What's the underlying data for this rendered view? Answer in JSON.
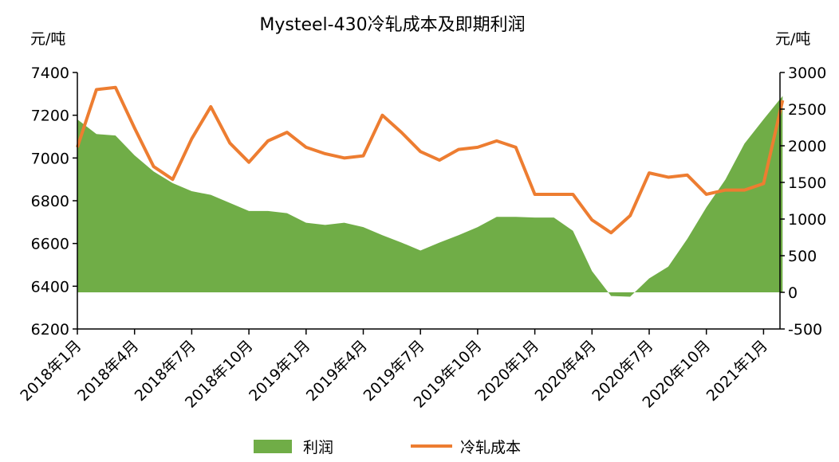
{
  "chart_data": {
    "type": "area-line",
    "title": "Mysteel-430冷轧成本及即期利润",
    "y_label": "元/吨",
    "y2_label": "元/吨",
    "categories": [
      "2018年1月",
      null,
      null,
      "2018年4月",
      null,
      null,
      "2018年7月",
      null,
      null,
      "2018年10月",
      null,
      null,
      "2019年1月",
      null,
      null,
      "2019年4月",
      null,
      null,
      "2019年7月",
      null,
      null,
      "2019年10月",
      null,
      null,
      "2020年1月",
      null,
      null,
      "2020年4月",
      null,
      null,
      "2020年7月",
      null,
      null,
      "2020年10月",
      null,
      null,
      "2021年1月",
      null
    ],
    "series": [
      {
        "name": "利润",
        "color": "#70ad47",
        "axis": "y2",
        "kind": "area",
        "values": [
          2360,
          2160,
          2140,
          1870,
          1650,
          1490,
          1380,
          1330,
          1220,
          1110,
          1110,
          1080,
          950,
          920,
          950,
          890,
          780,
          680,
          570,
          680,
          780,
          890,
          1030,
          1030,
          1020,
          1020,
          840,
          290,
          -50,
          -60,
          190,
          350,
          730,
          1160,
          1540,
          2030,
          2360,
          2680
        ]
      },
      {
        "name": "冷轧成本",
        "color": "#ed7d31",
        "axis": "y",
        "kind": "line",
        "values": [
          7050,
          7320,
          7330,
          7140,
          6960,
          6900,
          7090,
          7240,
          7070,
          6980,
          7080,
          7120,
          7050,
          7020,
          7000,
          7010,
          7200,
          7120,
          7030,
          6990,
          7040,
          7050,
          7080,
          7050,
          6830,
          6830,
          6830,
          6710,
          6650,
          6730,
          6930,
          6910,
          6920,
          6830,
          6850,
          6850,
          6880,
          7270
        ]
      }
    ],
    "ylim": [
      6200,
      7400
    ],
    "yticks": [
      6200,
      6400,
      6600,
      6800,
      7000,
      7200,
      7400
    ],
    "y2lim": [
      -500,
      3000
    ],
    "y2ticks": [
      -500,
      0,
      500,
      1000,
      1500,
      2000,
      2500,
      3000
    ],
    "legend": "bottom"
  }
}
